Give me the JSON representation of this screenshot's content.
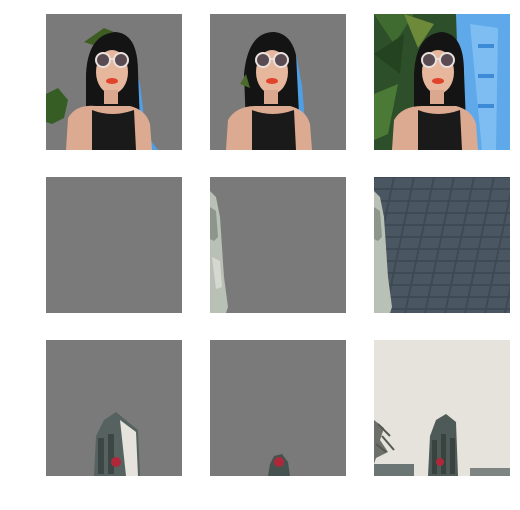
{
  "grid": {
    "rows": 3,
    "columns": 3,
    "tiles": [
      {
        "row": 1,
        "col": 1,
        "subject": "woman-sunglasses",
        "variant": "masked-foreground"
      },
      {
        "row": 1,
        "col": 2,
        "subject": "woman-sunglasses",
        "variant": "masked-tight"
      },
      {
        "row": 1,
        "col": 3,
        "subject": "woman-sunglasses",
        "variant": "original"
      },
      {
        "row": 2,
        "col": 1,
        "subject": "paved-street",
        "variant": "masked-empty"
      },
      {
        "row": 2,
        "col": 2,
        "subject": "paved-street",
        "variant": "masked-edge-figure"
      },
      {
        "row": 2,
        "col": 3,
        "subject": "paved-street",
        "variant": "original"
      },
      {
        "row": 3,
        "col": 1,
        "subject": "city-tower",
        "variant": "masked-building"
      },
      {
        "row": 3,
        "col": 2,
        "subject": "city-tower",
        "variant": "masked-top"
      },
      {
        "row": 3,
        "col": 3,
        "subject": "city-tower",
        "variant": "original"
      }
    ]
  },
  "colors": {
    "mask_gray": "#7a7a7a",
    "hair": "#151515",
    "skin": "#e8b9a0",
    "lips": "#e0442a",
    "palm": "#2f5a24",
    "inflatable": "#5fa9ea",
    "paving": "#3f4a55",
    "sky": "#e6e2dc",
    "tower": "#4d5a58",
    "tower_red": "#b1273a"
  }
}
